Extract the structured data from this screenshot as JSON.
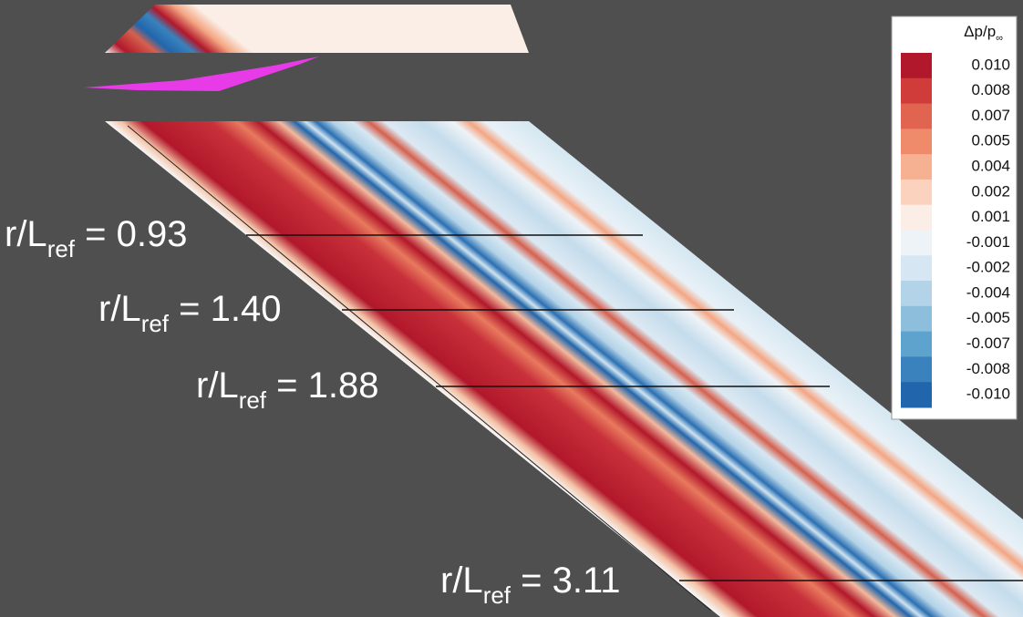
{
  "legend": {
    "title": {
      "text": "Δp/p",
      "sub": "∞"
    },
    "ticks": [
      "0.010",
      "0.008",
      "0.007",
      "0.005",
      "0.004",
      "0.002",
      "0.001",
      "-0.001",
      "-0.002",
      "-0.004",
      "-0.005",
      "-0.007",
      "-0.008",
      "-0.010"
    ],
    "colors": [
      "#b2182b",
      "#cf3c3a",
      "#e0644f",
      "#ef8a6a",
      "#f6b193",
      "#fbd2bd",
      "#fbeee6",
      "#eef3f8",
      "#d6e6f2",
      "#b3d3e8",
      "#8dbedc",
      "#5ea3cd",
      "#3a82bd",
      "#2166ac"
    ]
  },
  "annotations": [
    {
      "text": "r/L",
      "sub": "ref",
      "rest": " = 0.93"
    },
    {
      "text": "r/L",
      "sub": "ref",
      "rest": " = 1.40"
    },
    {
      "text": "r/L",
      "sub": "ref",
      "rest": " = 1.88"
    },
    {
      "text": "r/L",
      "sub": "ref",
      "rest": " = 3.11"
    }
  ]
}
